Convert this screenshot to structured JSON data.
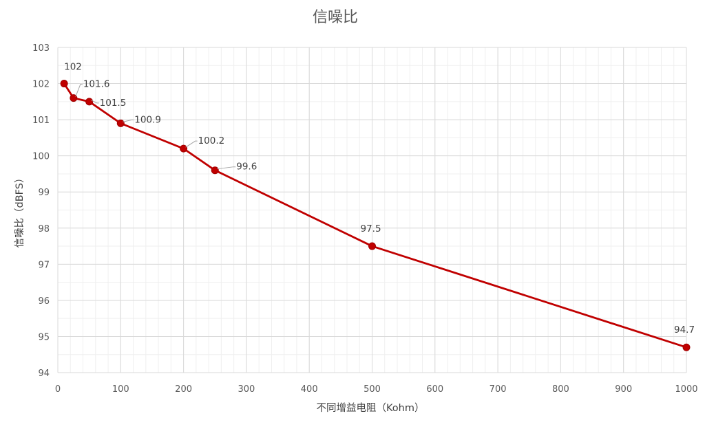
{
  "chart_data": {
    "type": "line",
    "title": "信噪比",
    "xlabel": "不同增益电阻（Kohm）",
    "ylabel": "信噪比（dBFS）",
    "xlim": [
      0,
      1000
    ],
    "ylim": [
      94,
      103
    ],
    "x_ticks": [
      0,
      100,
      200,
      300,
      400,
      500,
      600,
      700,
      800,
      900,
      1000
    ],
    "y_ticks": [
      94,
      95,
      96,
      97,
      98,
      99,
      100,
      101,
      102,
      103
    ],
    "grid": true,
    "legend": "none",
    "series": [
      {
        "color": "#c00000",
        "points": [
          {
            "x": 10,
            "y": 102,
            "label": "102"
          },
          {
            "x": 25,
            "y": 101.6,
            "label": "101.6"
          },
          {
            "x": 50,
            "y": 101.5,
            "label": "101.5"
          },
          {
            "x": 100,
            "y": 100.9,
            "label": "100.9"
          },
          {
            "x": 200,
            "y": 100.2,
            "label": "100.2"
          },
          {
            "x": 250,
            "y": 99.6,
            "label": "99.6"
          },
          {
            "x": 500,
            "y": 97.5,
            "label": "97.5"
          },
          {
            "x": 1000,
            "y": 94.7,
            "label": "94.7"
          }
        ]
      }
    ]
  }
}
